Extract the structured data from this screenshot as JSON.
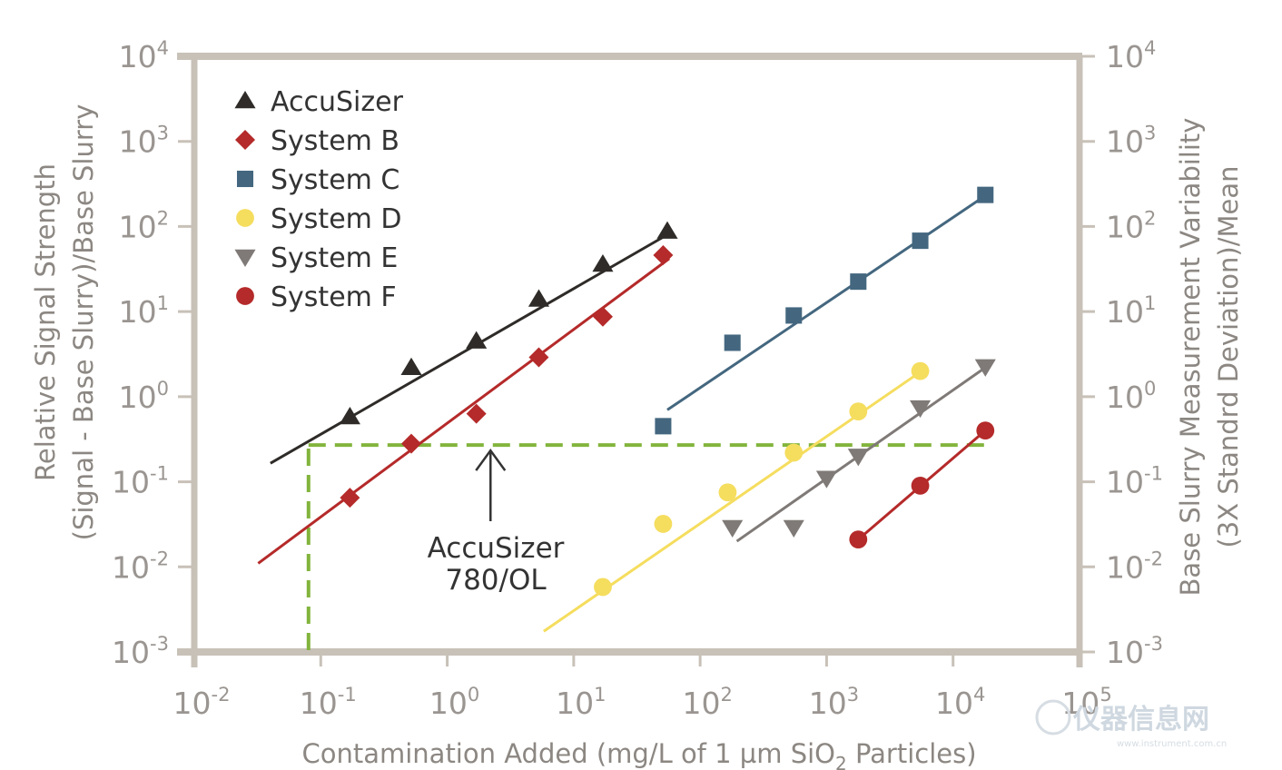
{
  "chart_data": {
    "type": "scatter",
    "xscale": "log",
    "yscale": "log",
    "xlim": [
      0.01,
      100000
    ],
    "ylim": [
      0.001,
      10000
    ],
    "xticks": [
      {
        "value": 0.01,
        "base": "10",
        "exp": "-2"
      },
      {
        "value": 0.1,
        "base": "10",
        "exp": "-1"
      },
      {
        "value": 1,
        "base": "10",
        "exp": "0"
      },
      {
        "value": 10,
        "base": "10",
        "exp": "1"
      },
      {
        "value": 100,
        "base": "10",
        "exp": "2"
      },
      {
        "value": 1000,
        "base": "10",
        "exp": "3"
      },
      {
        "value": 10000,
        "base": "10",
        "exp": "4"
      },
      {
        "value": 100000,
        "base": "10",
        "exp": "5"
      }
    ],
    "yticks": [
      {
        "value": 0.001,
        "base": "10",
        "exp": "-3"
      },
      {
        "value": 0.01,
        "base": "10",
        "exp": "-2"
      },
      {
        "value": 0.1,
        "base": "10",
        "exp": "-1"
      },
      {
        "value": 1,
        "base": "10",
        "exp": "0"
      },
      {
        "value": 10,
        "base": "10",
        "exp": "1"
      },
      {
        "value": 100,
        "base": "10",
        "exp": "2"
      },
      {
        "value": 1000,
        "base": "10",
        "exp": "3"
      },
      {
        "value": 10000,
        "base": "10",
        "exp": "4"
      }
    ],
    "xlabel": {
      "pre": "Contamination Added (mg/L of 1 µm SiO",
      "sub": "2",
      "post": " Particles)"
    },
    "ylabel_left": [
      "Relative Signal Strength",
      "(Signal - Base Slurry)/Base Slurry"
    ],
    "ylabel_right": [
      "Base Slurry Measurement Variability",
      "(3X Standrd Deviation)/Mean"
    ],
    "series": [
      {
        "name": "AccuSizer",
        "marker": "triangle-up",
        "color": "#2e2b28",
        "points": [
          [
            0.17,
            0.58
          ],
          [
            0.52,
            2.2
          ],
          [
            1.7,
            4.5
          ],
          [
            5.3,
            14
          ],
          [
            17,
            36
          ],
          [
            55,
            88
          ]
        ],
        "fit": [
          [
            0.04,
            0.165
          ],
          [
            55,
            80
          ]
        ]
      },
      {
        "name": "System B",
        "marker": "diamond",
        "color": "#b52a2a",
        "points": [
          [
            0.17,
            0.065
          ],
          [
            0.52,
            0.28
          ],
          [
            1.7,
            0.63
          ],
          [
            5.3,
            2.9
          ],
          [
            17,
            8.7
          ],
          [
            51,
            46
          ]
        ],
        "fit": [
          [
            0.032,
            0.011
          ],
          [
            57,
            42
          ]
        ]
      },
      {
        "name": "System C",
        "marker": "square",
        "color": "#44677f",
        "points": [
          [
            51,
            0.45
          ],
          [
            180,
            4.3
          ],
          [
            550,
            9
          ],
          [
            1780,
            22.5
          ],
          [
            5500,
            68
          ],
          [
            18000,
            235
          ]
        ],
        "fit": [
          [
            55,
            0.7
          ],
          [
            18000,
            230
          ]
        ]
      },
      {
        "name": "System D",
        "marker": "circle",
        "color": "#f5dd5e",
        "points": [
          [
            17,
            0.0058
          ],
          [
            51,
            0.032
          ],
          [
            165,
            0.075
          ],
          [
            550,
            0.22
          ],
          [
            1780,
            0.67
          ],
          [
            5500,
            2
          ]
        ],
        "fit": [
          [
            5.8,
            0.00175
          ],
          [
            5500,
            1.95
          ]
        ]
      },
      {
        "name": "System E",
        "marker": "triangle-down",
        "color": "#7f7a77",
        "points": [
          [
            180,
            0.029
          ],
          [
            550,
            0.029
          ],
          [
            1000,
            0.11
          ],
          [
            1780,
            0.2
          ],
          [
            5500,
            0.74
          ],
          [
            18000,
            2.25
          ]
        ],
        "fit": [
          [
            195,
            0.02
          ],
          [
            18000,
            2.2
          ]
        ]
      },
      {
        "name": "System F",
        "marker": "circle",
        "color": "#b52a2a",
        "points": [
          [
            1780,
            0.021
          ],
          [
            5500,
            0.09
          ],
          [
            18000,
            0.4
          ]
        ],
        "fit": [
          [
            1780,
            0.021
          ],
          [
            18000,
            0.4
          ]
        ]
      }
    ],
    "reference_line": {
      "x": 0.08,
      "y": 0.27,
      "x_end": 18000,
      "color": "#82b43c",
      "style": "dashed"
    },
    "annotation": {
      "lines": [
        "AccuSizer",
        "780/OL"
      ],
      "arrow_to": [
        2.2,
        0.27
      ]
    }
  },
  "watermark": {
    "text": "仪器信息网",
    "subtext": "www.instrument.com.cn"
  }
}
